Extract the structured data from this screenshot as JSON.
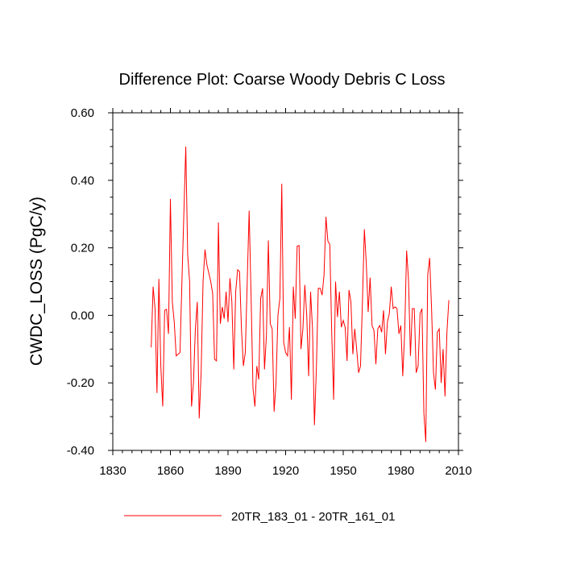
{
  "chart_data": {
    "type": "line",
    "title": "Difference Plot: Coarse Woody Debris C Loss",
    "ylabel": "CWDC_LOSS  (PgC/y)",
    "xlabel": "",
    "xlim": [
      1830,
      2010
    ],
    "ylim": [
      -0.4,
      0.6
    ],
    "xticks": [
      1830,
      1860,
      1890,
      1920,
      1950,
      1980,
      2010
    ],
    "xtick_labels": [
      "1830",
      "1860",
      "1890",
      "1920",
      "1950",
      "1980",
      "2010"
    ],
    "yticks": [
      -0.4,
      -0.2,
      0.0,
      0.2,
      0.4,
      0.6
    ],
    "ytick_labels": [
      "-0.40",
      "-0.20",
      "0.00",
      "0.20",
      "0.40",
      "0.60"
    ],
    "legend_position": "bottom-center",
    "series": [
      {
        "name": "20TR_183_01 - 20TR_161_01",
        "color": "#ff0000",
        "x": [
          1850,
          1851,
          1852,
          1853,
          1854,
          1855,
          1856,
          1857,
          1858,
          1859,
          1860,
          1861,
          1862,
          1863,
          1864,
          1865,
          1866,
          1867,
          1868,
          1869,
          1870,
          1871,
          1872,
          1873,
          1874,
          1875,
          1876,
          1877,
          1878,
          1879,
          1880,
          1881,
          1882,
          1883,
          1884,
          1885,
          1886,
          1887,
          1888,
          1889,
          1890,
          1891,
          1892,
          1893,
          1894,
          1895,
          1896,
          1897,
          1898,
          1899,
          1900,
          1901,
          1902,
          1903,
          1904,
          1905,
          1906,
          1907,
          1908,
          1909,
          1910,
          1911,
          1912,
          1913,
          1914,
          1915,
          1916,
          1917,
          1918,
          1919,
          1920,
          1921,
          1922,
          1923,
          1924,
          1925,
          1926,
          1927,
          1928,
          1929,
          1930,
          1931,
          1932,
          1933,
          1934,
          1935,
          1936,
          1937,
          1938,
          1939,
          1940,
          1941,
          1942,
          1943,
          1944,
          1945,
          1946,
          1947,
          1948,
          1949,
          1950,
          1951,
          1952,
          1953,
          1954,
          1955,
          1956,
          1957,
          1958,
          1959,
          1960,
          1961,
          1962,
          1963,
          1964,
          1965,
          1966,
          1967,
          1968,
          1969,
          1970,
          1971,
          1972,
          1973,
          1974,
          1975,
          1976,
          1977,
          1978,
          1979,
          1980,
          1981,
          1982,
          1983,
          1984,
          1985,
          1986,
          1987,
          1988,
          1989,
          1990,
          1991,
          1992,
          1993,
          1994,
          1995,
          1996,
          1997,
          1998,
          1999,
          2000,
          2001,
          2002,
          2003,
          2004,
          2005
        ],
        "values": [
          -0.095,
          0.085,
          0.02,
          -0.23,
          0.108,
          -0.15,
          -0.27,
          0.015,
          0.018,
          -0.055,
          0.345,
          0.04,
          -0.02,
          -0.12,
          -0.115,
          -0.11,
          0.1,
          0.3,
          0.5,
          0.18,
          0.1,
          -0.27,
          -0.2,
          -0.04,
          0.04,
          -0.305,
          -0.17,
          0.1,
          0.195,
          0.15,
          0.125,
          0.1,
          0.065,
          -0.13,
          -0.135,
          0.275,
          -0.025,
          0.025,
          -0.01,
          0.07,
          -0.02,
          0.11,
          0.04,
          -0.16,
          0.07,
          0.135,
          0.13,
          -0.04,
          -0.15,
          -0.11,
          0.1,
          0.31,
          0.06,
          -0.215,
          -0.27,
          -0.15,
          -0.19,
          0.05,
          0.08,
          -0.16,
          -0.06,
          0.222,
          -0.025,
          -0.04,
          -0.285,
          -0.2,
          0.0,
          0.05,
          0.39,
          -0.08,
          -0.11,
          -0.12,
          -0.035,
          -0.25,
          0.085,
          -0.01,
          0.205,
          0.207,
          -0.1,
          -0.04,
          0.09,
          0.0,
          -0.18,
          0.07,
          -0.04,
          -0.325,
          -0.16,
          0.08,
          0.08,
          0.06,
          0.12,
          0.292,
          0.22,
          0.21,
          -0.05,
          -0.25,
          0.1,
          -0.005,
          0.07,
          -0.035,
          -0.015,
          -0.035,
          -0.135,
          0.075,
          0.04,
          -0.115,
          -0.04,
          -0.1,
          -0.17,
          -0.15,
          0.04,
          0.255,
          0.155,
          0.01,
          0.112,
          -0.03,
          -0.045,
          -0.145,
          -0.04,
          -0.03,
          -0.05,
          0.015,
          -0.115,
          -0.02,
          0.005,
          0.085,
          0.02,
          0.025,
          0.02,
          -0.055,
          -0.03,
          -0.18,
          -0.05,
          0.192,
          0.105,
          -0.12,
          0.02,
          0.02,
          -0.17,
          -0.15,
          0.005,
          0.02,
          -0.29,
          -0.375,
          0.12,
          0.17,
          0.02,
          -0.17,
          -0.22,
          -0.05,
          -0.04,
          -0.2,
          -0.1,
          -0.24,
          -0.05,
          0.045
        ]
      }
    ]
  }
}
